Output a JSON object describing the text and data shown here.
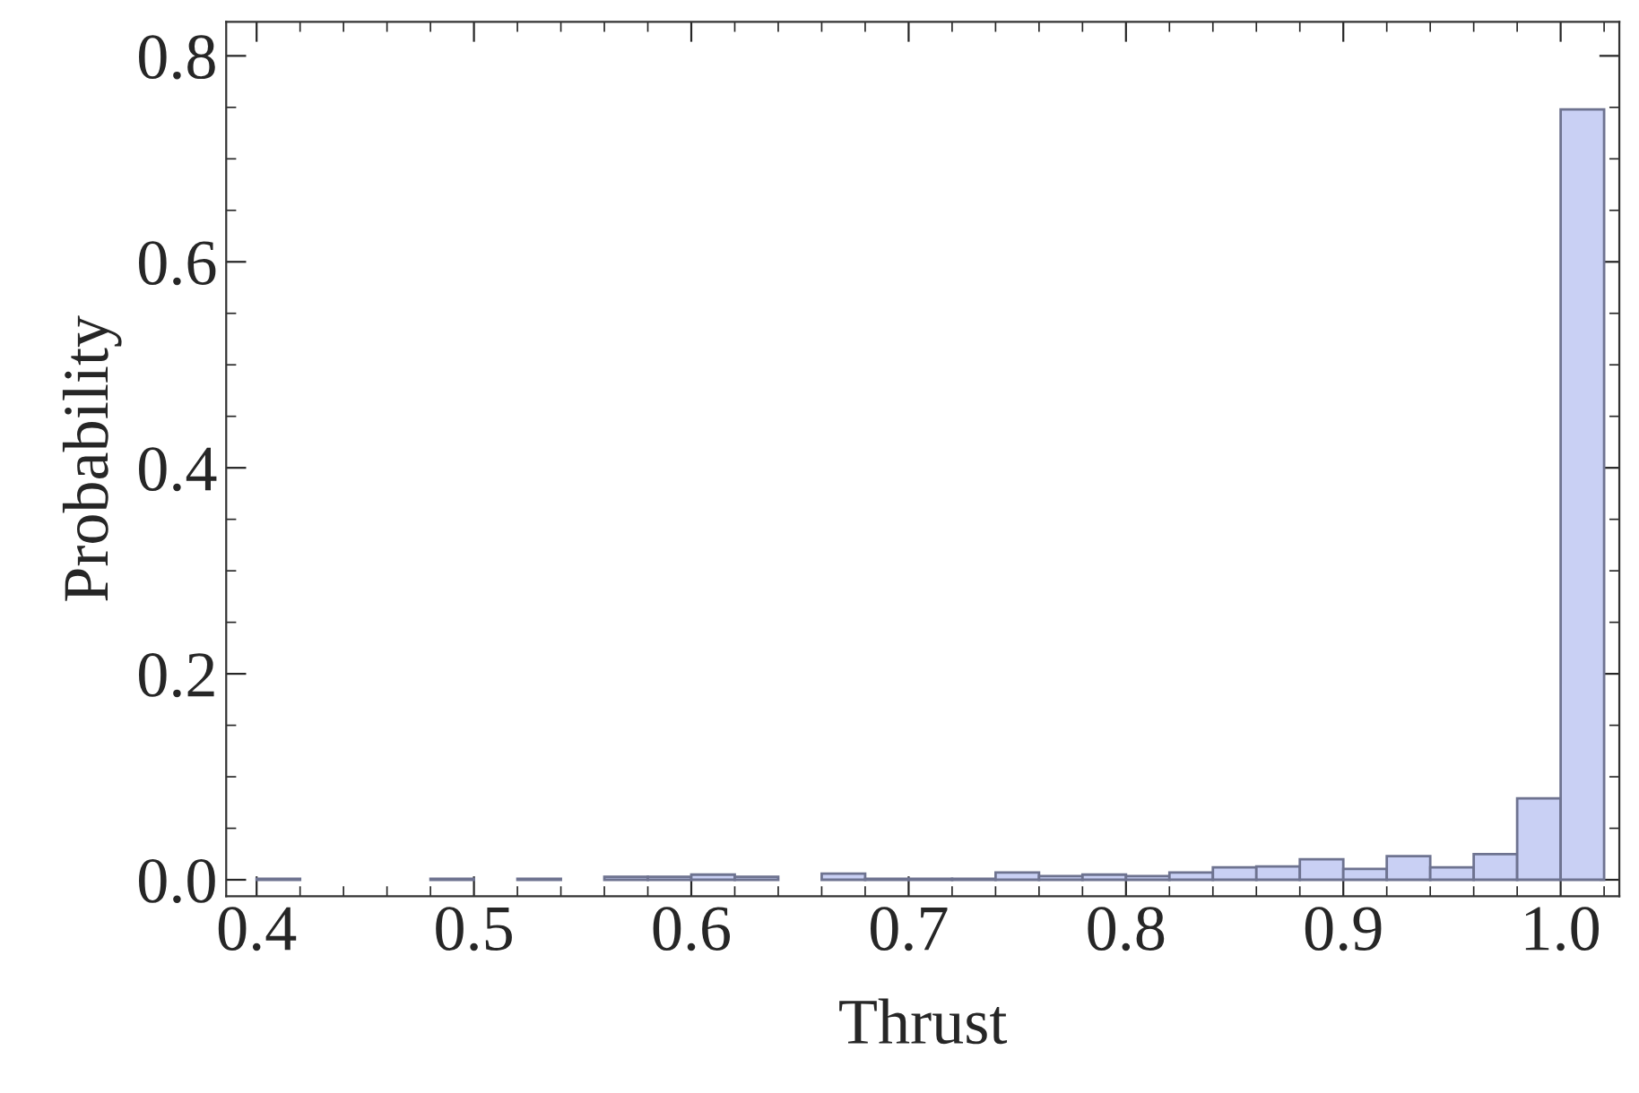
{
  "chart_data": {
    "type": "histogram",
    "xlabel": "Thrust",
    "ylabel": "Probability",
    "bins": [
      0.4,
      0.42,
      0.44,
      0.46,
      0.48,
      0.5,
      0.52,
      0.54,
      0.56,
      0.58,
      0.6,
      0.62,
      0.64,
      0.66,
      0.68,
      0.7,
      0.72,
      0.74,
      0.76,
      0.78,
      0.8,
      0.82,
      0.84,
      0.86,
      0.88,
      0.9,
      0.92,
      0.94,
      0.96,
      0.98,
      1.0,
      1.02
    ],
    "values": [
      0.001,
      0,
      0,
      0,
      0.001,
      0,
      0.001,
      0,
      0.003,
      0.003,
      0.005,
      0.003,
      0,
      0.006,
      0.001,
      0.001,
      0.001,
      0.007,
      0.0035,
      0.005,
      0.0035,
      0.007,
      0.012,
      0.013,
      0.02,
      0.0105,
      0.023,
      0.012,
      0.025,
      0.079,
      0.748
    ],
    "color": "#c9d0f4",
    "xlim": [
      0.386,
      1.027
    ],
    "ylim": [
      -0.016,
      0.833
    ],
    "xticks": [
      0.4,
      0.5,
      0.6,
      0.7,
      0.8,
      0.9,
      {
        "value": 1.0,
        "label": "1.0"
      }
    ],
    "yticks": [
      {
        "value": 0,
        "label": "0.0"
      },
      0.2,
      0.4,
      0.6,
      0.8
    ],
    "grid": false
  }
}
